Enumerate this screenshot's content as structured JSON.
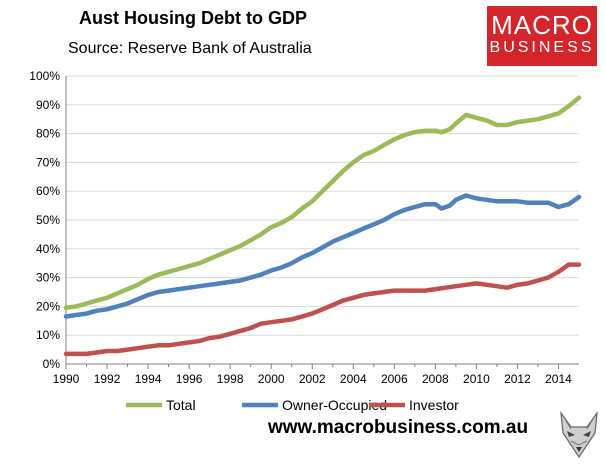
{
  "header": {
    "title": "Aust Housing Debt to GDP",
    "subtitle": "Source: Reserve Bank of Australia"
  },
  "logo": {
    "line1": "MACRO",
    "line2": "BUSINESS",
    "color": "#d4252a"
  },
  "footer": {
    "url": "www.macrobusiness.com.au",
    "mascot_icon": "fox-icon"
  },
  "chart_data": {
    "type": "line",
    "title": "Aust Housing Debt to GDP",
    "xlabel": "",
    "ylabel": "",
    "xlim": [
      1990,
      2015
    ],
    "ylim": [
      0,
      100
    ],
    "x_ticks": [
      1990,
      1992,
      1994,
      1996,
      1998,
      2000,
      2002,
      2004,
      2006,
      2008,
      2010,
      2012,
      2014
    ],
    "y_ticks": [
      "0%",
      "10%",
      "20%",
      "30%",
      "40%",
      "50%",
      "60%",
      "70%",
      "80%",
      "90%",
      "100%"
    ],
    "grid": true,
    "legend": "bottom",
    "series": [
      {
        "name": "Total",
        "color": "#9bbb59",
        "points": [
          [
            1990,
            19.5
          ],
          [
            1990.5,
            20
          ],
          [
            1991,
            21
          ],
          [
            1991.5,
            22
          ],
          [
            1992,
            23
          ],
          [
            1992.5,
            24.5
          ],
          [
            1993,
            26
          ],
          [
            1993.5,
            27.5
          ],
          [
            1994,
            29.5
          ],
          [
            1994.5,
            31
          ],
          [
            1995,
            32
          ],
          [
            1995.5,
            33
          ],
          [
            1996,
            34
          ],
          [
            1996.5,
            35
          ],
          [
            1997,
            36.5
          ],
          [
            1997.5,
            38
          ],
          [
            1998,
            39.5
          ],
          [
            1998.5,
            41
          ],
          [
            1999,
            43
          ],
          [
            1999.5,
            45
          ],
          [
            2000,
            47.5
          ],
          [
            2000.5,
            49
          ],
          [
            2001,
            51
          ],
          [
            2001.5,
            54
          ],
          [
            2002,
            56.5
          ],
          [
            2002.5,
            60
          ],
          [
            2003,
            63.5
          ],
          [
            2003.5,
            67
          ],
          [
            2004,
            70
          ],
          [
            2004.5,
            72.5
          ],
          [
            2005,
            74
          ],
          [
            2005.5,
            76
          ],
          [
            2006,
            78
          ],
          [
            2006.5,
            79.5
          ],
          [
            2007,
            80.5
          ],
          [
            2007.5,
            81
          ],
          [
            2008,
            81
          ],
          [
            2008.3,
            80.5
          ],
          [
            2008.7,
            81.5
          ],
          [
            2009,
            83.5
          ],
          [
            2009.5,
            86.5
          ],
          [
            2010,
            85.5
          ],
          [
            2010.5,
            84.5
          ],
          [
            2011,
            83
          ],
          [
            2011.5,
            83
          ],
          [
            2012,
            84
          ],
          [
            2012.5,
            84.5
          ],
          [
            2013,
            85
          ],
          [
            2013.5,
            86
          ],
          [
            2014,
            87
          ],
          [
            2014.5,
            89.5
          ],
          [
            2015,
            92.5
          ]
        ]
      },
      {
        "name": "Owner-Occupied",
        "color": "#4f81bd",
        "points": [
          [
            1990,
            16.5
          ],
          [
            1990.5,
            17
          ],
          [
            1991,
            17.5
          ],
          [
            1991.5,
            18.5
          ],
          [
            1992,
            19
          ],
          [
            1992.5,
            20
          ],
          [
            1993,
            21
          ],
          [
            1993.5,
            22.5
          ],
          [
            1994,
            24
          ],
          [
            1994.5,
            25
          ],
          [
            1995,
            25.5
          ],
          [
            1995.5,
            26
          ],
          [
            1996,
            26.5
          ],
          [
            1996.5,
            27
          ],
          [
            1997,
            27.5
          ],
          [
            1997.5,
            28
          ],
          [
            1998,
            28.5
          ],
          [
            1998.5,
            29
          ],
          [
            1999,
            30
          ],
          [
            1999.5,
            31
          ],
          [
            2000,
            32.5
          ],
          [
            2000.5,
            33.5
          ],
          [
            2001,
            35
          ],
          [
            2001.5,
            37
          ],
          [
            2002,
            38.5
          ],
          [
            2002.5,
            40.5
          ],
          [
            2003,
            42.5
          ],
          [
            2003.5,
            44
          ],
          [
            2004,
            45.5
          ],
          [
            2004.5,
            47
          ],
          [
            2005,
            48.5
          ],
          [
            2005.5,
            50
          ],
          [
            2006,
            52
          ],
          [
            2006.5,
            53.5
          ],
          [
            2007,
            54.5
          ],
          [
            2007.5,
            55.5
          ],
          [
            2008,
            55.5
          ],
          [
            2008.3,
            54
          ],
          [
            2008.7,
            55
          ],
          [
            2009,
            57
          ],
          [
            2009.5,
            58.5
          ],
          [
            2010,
            57.5
          ],
          [
            2010.5,
            57
          ],
          [
            2011,
            56.5
          ],
          [
            2011.5,
            56.5
          ],
          [
            2012,
            56.5
          ],
          [
            2012.5,
            56
          ],
          [
            2013,
            56
          ],
          [
            2013.5,
            56
          ],
          [
            2014,
            54.5
          ],
          [
            2014.5,
            55.5
          ],
          [
            2015,
            58
          ]
        ]
      },
      {
        "name": "Investor",
        "color": "#c0504d",
        "points": [
          [
            1990,
            3.5
          ],
          [
            1990.5,
            3.5
          ],
          [
            1991,
            3.5
          ],
          [
            1991.5,
            4
          ],
          [
            1992,
            4.5
          ],
          [
            1992.5,
            4.5
          ],
          [
            1993,
            5
          ],
          [
            1993.5,
            5.5
          ],
          [
            1994,
            6
          ],
          [
            1994.5,
            6.5
          ],
          [
            1995,
            6.5
          ],
          [
            1995.5,
            7
          ],
          [
            1996,
            7.5
          ],
          [
            1996.5,
            8
          ],
          [
            1997,
            9
          ],
          [
            1997.5,
            9.5
          ],
          [
            1998,
            10.5
          ],
          [
            1998.5,
            11.5
          ],
          [
            1999,
            12.5
          ],
          [
            1999.5,
            14
          ],
          [
            2000,
            14.5
          ],
          [
            2000.5,
            15
          ],
          [
            2001,
            15.5
          ],
          [
            2001.5,
            16.5
          ],
          [
            2002,
            17.5
          ],
          [
            2002.5,
            19
          ],
          [
            2003,
            20.5
          ],
          [
            2003.5,
            22
          ],
          [
            2004,
            23
          ],
          [
            2004.5,
            24
          ],
          [
            2005,
            24.5
          ],
          [
            2005.5,
            25
          ],
          [
            2006,
            25.5
          ],
          [
            2006.5,
            25.5
          ],
          [
            2007,
            25.5
          ],
          [
            2007.5,
            25.5
          ],
          [
            2008,
            26
          ],
          [
            2008.5,
            26.5
          ],
          [
            2009,
            27
          ],
          [
            2009.5,
            27.5
          ],
          [
            2010,
            28
          ],
          [
            2010.5,
            27.5
          ],
          [
            2011,
            27
          ],
          [
            2011.5,
            26.5
          ],
          [
            2012,
            27.5
          ],
          [
            2012.5,
            28
          ],
          [
            2013,
            29
          ],
          [
            2013.5,
            30
          ],
          [
            2014,
            32
          ],
          [
            2014.5,
            34.5
          ],
          [
            2015,
            34.5
          ]
        ]
      }
    ]
  }
}
